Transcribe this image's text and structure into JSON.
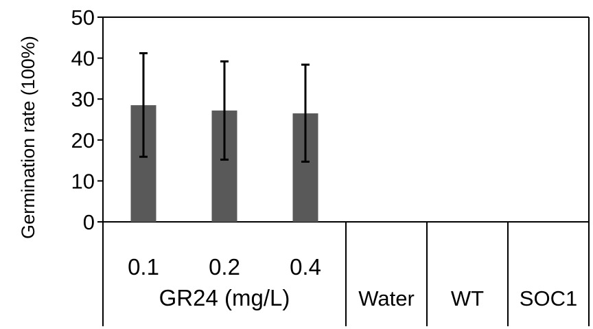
{
  "chart_data": {
    "type": "bar",
    "ylabel": "Germination rate (100%)",
    "ylim": [
      0,
      50
    ],
    "yticks": [
      "0",
      "10",
      "20",
      "30",
      "40",
      "50"
    ],
    "grid": false,
    "legend": "none",
    "categories": [
      "0.1",
      "0.2",
      "0.4",
      "Water",
      "WT",
      "SOC1"
    ],
    "group_label": "GR24 (mg/L)",
    "values": [
      28.5,
      27.2,
      26.5,
      0,
      0,
      0
    ],
    "error_high": [
      41.2,
      39.2,
      38.4,
      0,
      0,
      0
    ],
    "error_low": [
      15.9,
      15.2,
      14.7,
      0,
      0,
      0
    ],
    "colors": {
      "bar": "#595959",
      "axis": "#000000"
    }
  }
}
